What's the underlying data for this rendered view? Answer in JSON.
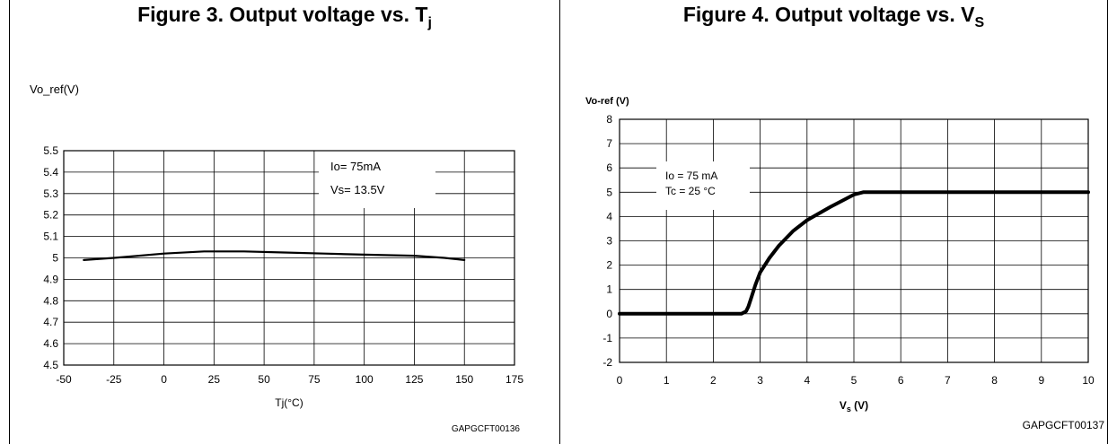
{
  "chart_data": [
    {
      "type": "line",
      "title": "Figure 3. Output voltage vs. T",
      "title_subscript": "j",
      "ylabel": "Vo_ref(V)",
      "xlabel": "Tj(°C)",
      "xlim": [
        -50,
        175
      ],
      "ylim": [
        4.5,
        5.5
      ],
      "xticks": [
        -50,
        -25,
        0,
        25,
        50,
        75,
        100,
        125,
        150,
        175
      ],
      "yticks": [
        5.5,
        5.4,
        5.3,
        5.2,
        5.1,
        5,
        4.9,
        4.8,
        4.7,
        4.6,
        4.5
      ],
      "grid": true,
      "annotations": [
        "Io= 75mA",
        "Vs= 13.5V"
      ],
      "code": "GAPGCFT00136",
      "series": [
        {
          "x": [
            -40,
            -25,
            0,
            20,
            40,
            60,
            80,
            100,
            125,
            140,
            150
          ],
          "y": [
            4.99,
            5.0,
            5.02,
            5.03,
            5.03,
            5.025,
            5.02,
            5.015,
            5.01,
            5.0,
            4.99
          ]
        }
      ]
    },
    {
      "type": "line",
      "title": "Figure 4. Output voltage vs. V",
      "title_subscript": "S",
      "ylabel": "Vo-ref (V)",
      "xlabel": "Vs (V)",
      "xlim": [
        0,
        10
      ],
      "ylim": [
        -2,
        8
      ],
      "xticks": [
        0,
        1,
        2,
        3,
        4,
        5,
        6,
        7,
        8,
        9,
        10
      ],
      "yticks": [
        8,
        7,
        6,
        5,
        4,
        3,
        2,
        1,
        0,
        -1,
        -2
      ],
      "grid": true,
      "annotations": [
        "Io = 75 mA",
        "Tc = 25 °C"
      ],
      "code": "GAPGCFT00137",
      "series": [
        {
          "x": [
            0,
            2.6,
            2.7,
            2.75,
            2.8,
            2.9,
            3.0,
            3.2,
            3.4,
            3.7,
            4.0,
            4.5,
            5.0,
            5.2,
            10
          ],
          "y": [
            0,
            0,
            0.1,
            0.3,
            0.6,
            1.2,
            1.7,
            2.3,
            2.8,
            3.4,
            3.85,
            4.4,
            4.9,
            5.0,
            5.0
          ]
        }
      ]
    }
  ]
}
